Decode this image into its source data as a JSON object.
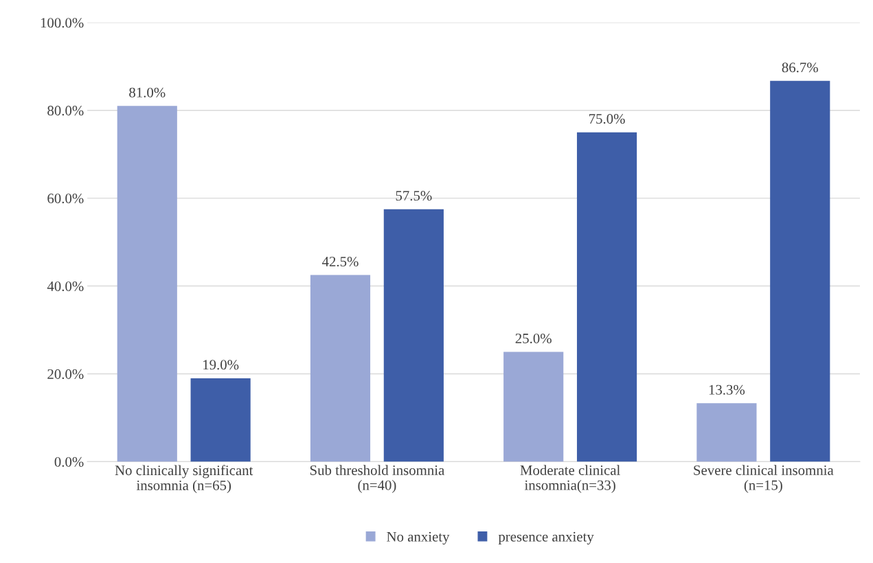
{
  "chart_data": {
    "type": "bar",
    "categories": [
      "No clinically significant\ninsomnia (n=65)",
      "Sub threshold insomnia\n(n=40)",
      "Moderate clinical\ninsomnia(n=33)",
      "Severe clinical insomnia\n(n=15)"
    ],
    "series": [
      {
        "name": "No anxiety",
        "color": "#9aa8d6",
        "values": [
          81.0,
          42.5,
          25.0,
          13.3
        ],
        "value_labels": [
          "81.0%",
          "42.5%",
          "25.0%",
          "13.3%"
        ]
      },
      {
        "name": "presence anxiety",
        "color": "#3e5ea8",
        "values": [
          19.0,
          57.5,
          75.0,
          86.7
        ],
        "value_labels": [
          "19.0%",
          "57.5%",
          "75.0%",
          "86.7%"
        ]
      }
    ],
    "ylim": [
      0,
      100
    ],
    "yticks": [
      {
        "value": 0,
        "label": "0.0%"
      },
      {
        "value": 20,
        "label": "20.0%"
      },
      {
        "value": 40,
        "label": "40.0%"
      },
      {
        "value": 60,
        "label": "60.0%"
      },
      {
        "value": 80,
        "label": "80.0%"
      },
      {
        "value": 100,
        "label": "100.0%"
      }
    ],
    "grid": "y",
    "legend": "bottom"
  }
}
